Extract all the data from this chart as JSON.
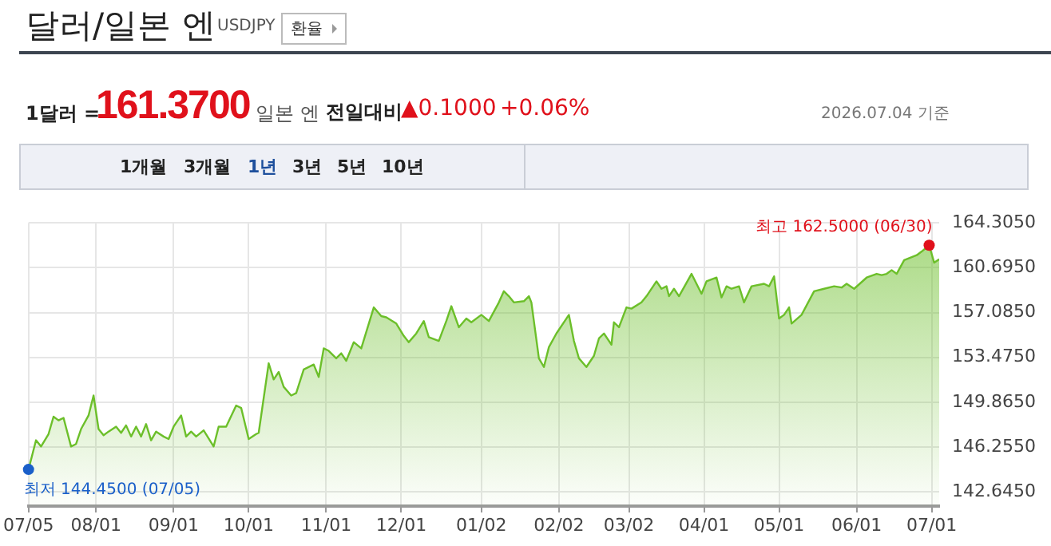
{
  "chart_data": {
    "type": "area",
    "title": "달러/일본 엔",
    "subtitle": "USDJPY",
    "annotations": [
      {
        "text": "최고 162.5000 (06/30)",
        "x": "2026-06-30",
        "y": 162.5
      },
      {
        "text": "최저 144.4500 (07/05)",
        "x": "2025-07-05",
        "y": 144.45
      },
      "환율",
      "1달러 =",
      "161.3700",
      "일본 엔",
      "전일대비",
      "▲0.1000",
      "+0.06%",
      "2026.07.04 기준",
      "1개월",
      "3개월",
      "1년",
      "3년",
      "5년",
      "10년"
    ],
    "x": [
      "2025-07-05",
      "2025-07-08",
      "2025-07-10",
      "2025-07-13",
      "2025-07-15",
      "2025-07-17",
      "2025-07-19",
      "2025-07-22",
      "2025-07-24",
      "2025-07-26",
      "2025-07-29",
      "2025-07-31",
      "2025-08-02",
      "2025-08-04",
      "2025-08-06",
      "2025-08-09",
      "2025-08-11",
      "2025-08-13",
      "2025-08-15",
      "2025-08-17",
      "2025-08-19",
      "2025-08-21",
      "2025-08-23",
      "2025-08-25",
      "2025-08-28",
      "2025-08-30",
      "2025-09-01",
      "2025-09-04",
      "2025-09-06",
      "2025-09-08",
      "2025-09-10",
      "2025-09-13",
      "2025-09-17",
      "2025-09-19",
      "2025-09-22",
      "2025-09-26",
      "2025-09-28",
      "2025-10-01",
      "2025-10-04",
      "2025-10-05",
      "2025-10-09",
      "2025-10-11",
      "2025-10-13",
      "2025-10-15",
      "2025-10-18",
      "2025-10-20",
      "2025-10-23",
      "2025-10-27",
      "2025-10-29",
      "2025-10-31",
      "2025-11-02",
      "2025-11-05",
      "2025-11-07",
      "2025-11-09",
      "2025-11-12",
      "2025-11-15",
      "2025-11-20",
      "2025-11-23",
      "2025-11-25",
      "2025-11-29",
      "2025-12-02",
      "2025-12-04",
      "2025-12-07",
      "2025-12-10",
      "2025-12-12",
      "2025-12-16",
      "2025-12-19",
      "2025-12-21",
      "2025-12-24",
      "2025-12-27",
      "2025-12-29",
      "2026-01-02",
      "2026-01-05",
      "2026-01-09",
      "2026-01-11",
      "2026-01-13",
      "2026-01-15",
      "2026-01-19",
      "2026-01-21",
      "2026-01-22",
      "2026-01-25",
      "2026-01-27",
      "2026-01-29",
      "2026-02-01",
      "2026-02-06",
      "2026-02-08",
      "2026-02-10",
      "2026-02-13",
      "2026-02-16",
      "2026-02-18",
      "2026-02-20",
      "2026-02-23",
      "2026-02-24",
      "2026-02-26",
      "2026-03-01",
      "2026-03-03",
      "2026-03-07",
      "2026-03-09",
      "2026-03-13",
      "2026-03-15",
      "2026-03-17",
      "2026-03-18",
      "2026-03-20",
      "2026-03-22",
      "2026-03-27",
      "2026-03-31",
      "2026-04-02",
      "2026-04-06",
      "2026-04-08",
      "2026-04-10",
      "2026-04-12",
      "2026-04-15",
      "2026-04-17",
      "2026-04-20",
      "2026-04-25",
      "2026-04-27",
      "2026-04-29",
      "2026-05-01",
      "2026-05-03",
      "2026-05-05",
      "2026-05-06",
      "2026-05-10",
      "2026-05-15",
      "2026-05-19",
      "2026-05-23",
      "2026-05-26",
      "2026-05-28",
      "2026-05-31",
      "2026-06-05",
      "2026-06-09",
      "2026-06-11",
      "2026-06-13",
      "2026-06-15",
      "2026-06-17",
      "2026-06-20",
      "2026-06-25",
      "2026-06-27",
      "2026-06-30",
      "2026-07-02",
      "2026-07-04"
    ],
    "series": [
      {
        "color": "#6cbf2a",
        "values": [
          144.45,
          146.8,
          146.3,
          147.3,
          148.7,
          148.4,
          148.6,
          146.3,
          146.5,
          147.7,
          148.8,
          150.4,
          147.7,
          147.2,
          147.5,
          147.9,
          147.4,
          148.0,
          147.1,
          147.9,
          147.1,
          148.1,
          146.8,
          147.5,
          147.1,
          146.9,
          147.9,
          148.8,
          147.1,
          147.5,
          147.1,
          147.6,
          146.3,
          147.9,
          147.9,
          149.6,
          149.4,
          146.9,
          147.3,
          147.4,
          153.0,
          151.7,
          152.3,
          151.1,
          150.4,
          150.6,
          152.5,
          152.9,
          151.9,
          154.2,
          154.0,
          153.4,
          153.8,
          153.2,
          154.7,
          154.2,
          157.5,
          156.8,
          156.7,
          156.2,
          155.2,
          154.7,
          155.4,
          156.4,
          155.1,
          154.8,
          156.4,
          157.6,
          155.9,
          156.6,
          156.3,
          156.9,
          156.4,
          157.9,
          158.8,
          158.4,
          157.9,
          158.0,
          158.4,
          157.9,
          153.4,
          152.7,
          154.3,
          155.4,
          156.9,
          154.8,
          153.4,
          152.7,
          153.6,
          155.0,
          155.4,
          154.5,
          156.3,
          155.9,
          157.5,
          157.4,
          157.9,
          158.4,
          159.6,
          159.0,
          159.2,
          158.4,
          159.0,
          158.4,
          160.2,
          158.6,
          159.6,
          159.9,
          158.3,
          159.2,
          159.0,
          159.2,
          157.9,
          159.2,
          159.4,
          159.2,
          160.0,
          156.6,
          156.9,
          157.5,
          156.2,
          156.9,
          158.8,
          159.0,
          159.2,
          159.1,
          159.4,
          159.0,
          159.9,
          160.2,
          160.1,
          160.2,
          160.5,
          160.2,
          161.3,
          161.7,
          162.0,
          162.5,
          161.1,
          161.37
        ]
      }
    ],
    "xlim": [
      "2025-07-05",
      "2026-07-04"
    ],
    "xticks": [
      {
        "value": "2025-07-05",
        "label": "07/05"
      },
      {
        "value": "2025-08-01",
        "label": "08/01"
      },
      {
        "value": "2025-09-01",
        "label": "09/01"
      },
      {
        "value": "2025-10-01",
        "label": "10/01"
      },
      {
        "value": "2025-11-01",
        "label": "11/01"
      },
      {
        "value": "2025-12-01",
        "label": "12/01"
      },
      {
        "value": "2026-01-02",
        "label": "01/02"
      },
      {
        "value": "2026-02-02",
        "label": "02/02"
      },
      {
        "value": "2026-03-02",
        "label": "03/02"
      },
      {
        "value": "2026-04-01",
        "label": "04/01"
      },
      {
        "value": "2026-05-01",
        "label": "05/01"
      },
      {
        "value": "2026-06-01",
        "label": "06/01"
      },
      {
        "value": "2026-07-01",
        "label": "07/01"
      }
    ],
    "ylim": [
      141.5,
      164.305
    ],
    "yticks": [
      {
        "value": 142.645,
        "label": "142.6450"
      },
      {
        "value": 146.255,
        "label": "146.2550"
      },
      {
        "value": 149.865,
        "label": "149.8650"
      },
      {
        "value": 153.475,
        "label": "153.4750"
      },
      {
        "value": 157.085,
        "label": "157.0850"
      },
      {
        "value": 160.695,
        "label": "160.6950"
      },
      {
        "value": 164.305,
        "label": "164.3050"
      }
    ],
    "grid": true
  }
}
